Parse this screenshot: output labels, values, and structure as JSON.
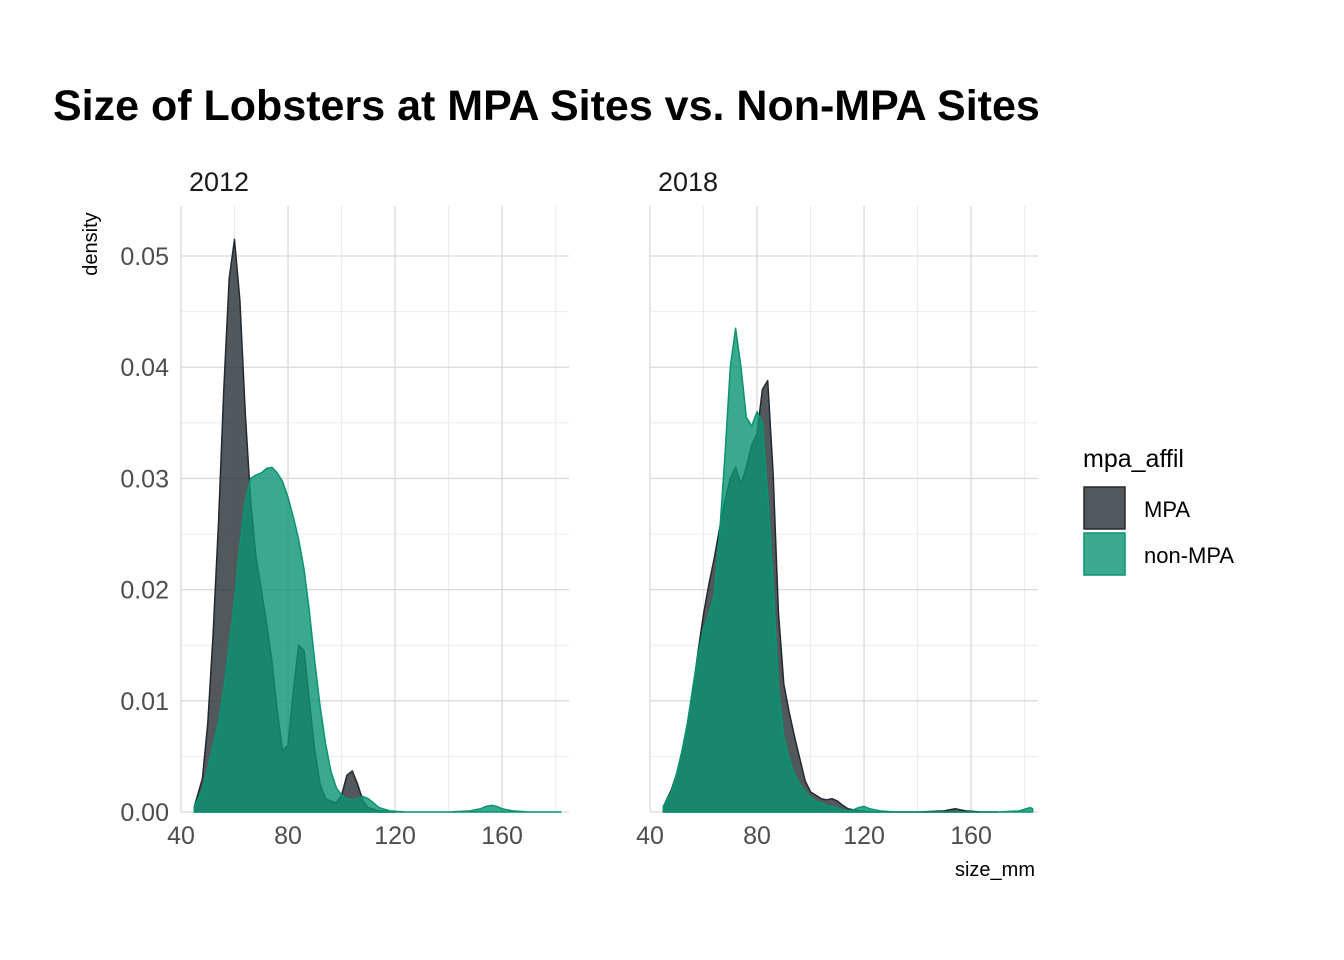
{
  "chart_data": {
    "type": "area",
    "title": "Size of Lobsters at MPA Sites vs. Non-MPA Sites",
    "xlabel": "size_mm",
    "ylabel": "density",
    "xlim": [
      40,
      185
    ],
    "ylim": [
      0,
      0.0545
    ],
    "x_ticks": [
      40,
      80,
      120,
      160
    ],
    "x_tick_labels": [
      "40",
      "80",
      "120",
      "160"
    ],
    "y_ticks": [
      0,
      0.01,
      0.02,
      0.03,
      0.04,
      0.05
    ],
    "y_tick_labels": [
      "0.00",
      "0.01",
      "0.02",
      "0.03",
      "0.04",
      "0.05"
    ],
    "grid": true,
    "legend": {
      "title": "mpa_affil",
      "position": "right",
      "entries": [
        "MPA",
        "non-MPA"
      ]
    },
    "series_colors": {
      "MPA": "#22292f",
      "non-MPA": "#0a9472"
    },
    "facets": [
      {
        "label": "2012",
        "series": [
          {
            "name": "MPA",
            "x": [
              45,
              48,
              50,
              52,
              54,
              56,
              58,
              60,
              62,
              64,
              66,
              68,
              70,
              72,
              74,
              76,
              78,
              80,
              82,
              84,
              86,
              88,
              90,
              92,
              94,
              96,
              98,
              100,
              102,
              104,
              106,
              108,
              110,
              114,
              120
            ],
            "y": [
              0.0005,
              0.003,
              0.008,
              0.016,
              0.026,
              0.038,
              0.048,
              0.0515,
              0.046,
              0.036,
              0.028,
              0.023,
              0.02,
              0.017,
              0.0135,
              0.009,
              0.0055,
              0.006,
              0.011,
              0.015,
              0.0145,
              0.01,
              0.0055,
              0.0025,
              0.0012,
              0.001,
              0.0008,
              0.0015,
              0.0033,
              0.0037,
              0.0025,
              0.001,
              0.0004,
              0.0001,
              0
            ]
          },
          {
            "name": "non-MPA",
            "x": [
              45,
              48,
              50,
              52,
              54,
              56,
              58,
              60,
              62,
              64,
              66,
              68,
              70,
              72,
              74,
              76,
              78,
              80,
              82,
              84,
              86,
              88,
              90,
              92,
              94,
              96,
              98,
              100,
              102,
              104,
              106,
              108,
              110,
              112,
              114,
              118,
              124,
              130,
              140,
              148,
              152,
              154,
              156,
              158,
              160,
              164,
              170,
              176,
              182
            ],
            "y": [
              0.0005,
              0.002,
              0.004,
              0.006,
              0.008,
              0.011,
              0.015,
              0.019,
              0.024,
              0.028,
              0.03,
              0.0303,
              0.0305,
              0.0309,
              0.031,
              0.0305,
              0.0297,
              0.0283,
              0.0265,
              0.0245,
              0.0218,
              0.018,
              0.0135,
              0.0095,
              0.0062,
              0.0037,
              0.0022,
              0.0015,
              0.0012,
              0.0011,
              0.0012,
              0.0014,
              0.0012,
              0.0008,
              0.0004,
              0.0001,
              0,
              0,
              0,
              0.0001,
              0.0003,
              0.0005,
              0.0006,
              0.0005,
              0.0003,
              0.0001,
              0,
              0,
              0
            ]
          }
        ]
      },
      {
        "label": "2018",
        "series": [
          {
            "name": "MPA",
            "x": [
              45,
              48,
              50,
              52,
              54,
              56,
              58,
              60,
              62,
              64,
              66,
              68,
              70,
              72,
              74,
              76,
              78,
              80,
              82,
              84,
              86,
              88,
              90,
              92,
              94,
              96,
              98,
              100,
              102,
              104,
              106,
              108,
              110,
              112,
              114,
              118,
              124,
              130,
              140,
              150,
              154,
              158,
              164,
              170
            ],
            "y": [
              0.0005,
              0.002,
              0.0035,
              0.0055,
              0.008,
              0.011,
              0.0145,
              0.0178,
              0.0205,
              0.0228,
              0.0255,
              0.028,
              0.03,
              0.031,
              0.0295,
              0.031,
              0.033,
              0.034,
              0.038,
              0.0388,
              0.0305,
              0.018,
              0.0115,
              0.009,
              0.0068,
              0.0048,
              0.0028,
              0.0018,
              0.0015,
              0.0012,
              0.0011,
              0.0012,
              0.001,
              0.0006,
              0.0003,
              0.0001,
              0,
              0,
              0,
              0.0001,
              0.0003,
              0.0001,
              0,
              0
            ]
          },
          {
            "name": "non-MPA",
            "x": [
              45,
              48,
              50,
              52,
              54,
              56,
              58,
              60,
              62,
              64,
              66,
              68,
              70,
              72,
              74,
              76,
              78,
              80,
              82,
              84,
              86,
              88,
              90,
              92,
              94,
              96,
              98,
              100,
              102,
              104,
              106,
              108,
              110,
              112,
              114,
              116,
              118,
              120,
              122,
              126,
              132,
              140,
              150,
              160,
              170,
              178,
              182,
              183
            ],
            "y": [
              0.0005,
              0.0018,
              0.0035,
              0.0055,
              0.008,
              0.0112,
              0.0142,
              0.0165,
              0.0178,
              0.0195,
              0.025,
              0.032,
              0.04,
              0.0435,
              0.04,
              0.0355,
              0.0347,
              0.036,
              0.035,
              0.0285,
              0.0205,
              0.0112,
              0.0068,
              0.0048,
              0.0034,
              0.0025,
              0.0018,
              0.0013,
              0.001,
              0.0008,
              0.0006,
              0.0005,
              0.0004,
              0.0002,
              0.0001,
              0.0002,
              0.0004,
              0.0005,
              0.0003,
              0.0001,
              0,
              0,
              0,
              0,
              0,
              0.0001,
              0.0004,
              0.0003
            ]
          }
        ]
      }
    ]
  }
}
